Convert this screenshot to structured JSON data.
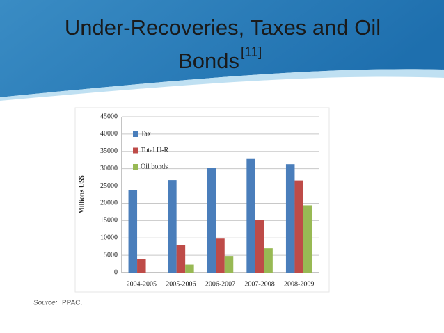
{
  "slide": {
    "title_lines": [
      "Under-Recoveries, Taxes and Oil",
      "Bonds"
    ],
    "title_superscript": "[11]",
    "source_label": "Source:",
    "source": "PPAC."
  },
  "chart_data": {
    "type": "bar",
    "categories": [
      "2004-2005",
      "2005-2006",
      "2006-2007",
      "2007-2008",
      "2008-2009"
    ],
    "series": [
      {
        "name": "Tax",
        "color": "#4a7ebb",
        "values": [
          23800,
          26700,
          30300,
          33000,
          31300
        ]
      },
      {
        "name": "Total U-R",
        "color": "#be4b48",
        "values": [
          4000,
          8000,
          9800,
          15200,
          26600
        ]
      },
      {
        "name": "Oil bonds",
        "color": "#98b954",
        "values": [
          null,
          2300,
          4800,
          7000,
          19400
        ]
      }
    ],
    "y_label": "Millions US$",
    "ylim": [
      0,
      45000
    ],
    "yticks": [
      0,
      5000,
      10000,
      15000,
      20000,
      25000,
      30000,
      35000,
      40000,
      45000
    ],
    "grid": true,
    "legend": "upper-left"
  }
}
